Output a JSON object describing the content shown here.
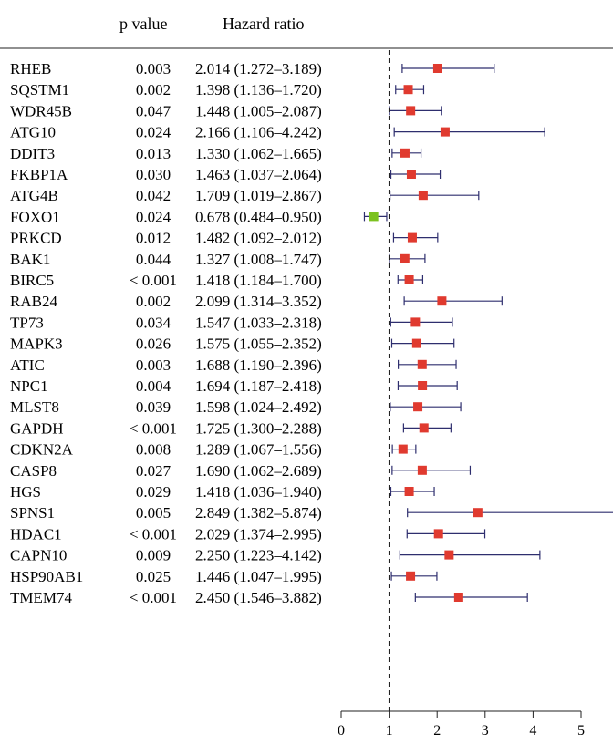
{
  "chart_data": {
    "type": "forest",
    "columns": {
      "gene": "",
      "p_value": "p value",
      "hazard_ratio": "Hazard ratio"
    },
    "reference_line": 1,
    "xlim": [
      0,
      5
    ],
    "xticks": [
      "0",
      "1",
      "2",
      "3",
      "4",
      "5"
    ],
    "colors": {
      "risk": "#e03a2f",
      "protective": "#7cc21f",
      "ci_line": "#2e2e6e"
    },
    "rows": [
      {
        "gene": "RHEB",
        "p": "0.003",
        "hr_text": "2.014 (1.272–3.189)",
        "hr": 2.014,
        "lo": 1.272,
        "hi": 3.189
      },
      {
        "gene": "SQSTM1",
        "p": "0.002",
        "hr_text": "1.398 (1.136–1.720)",
        "hr": 1.398,
        "lo": 1.136,
        "hi": 1.72
      },
      {
        "gene": "WDR45B",
        "p": "0.047",
        "hr_text": "1.448 (1.005–2.087)",
        "hr": 1.448,
        "lo": 1.005,
        "hi": 2.087
      },
      {
        "gene": "ATG10",
        "p": "0.024",
        "hr_text": "2.166 (1.106–4.242)",
        "hr": 2.166,
        "lo": 1.106,
        "hi": 4.242
      },
      {
        "gene": "DDIT3",
        "p": "0.013",
        "hr_text": "1.330 (1.062–1.665)",
        "hr": 1.33,
        "lo": 1.062,
        "hi": 1.665
      },
      {
        "gene": "FKBP1A",
        "p": "0.030",
        "hr_text": "1.463 (1.037–2.064)",
        "hr": 1.463,
        "lo": 1.037,
        "hi": 2.064
      },
      {
        "gene": "ATG4B",
        "p": "0.042",
        "hr_text": "1.709 (1.019–2.867)",
        "hr": 1.709,
        "lo": 1.019,
        "hi": 2.867
      },
      {
        "gene": "FOXO1",
        "p": "0.024",
        "hr_text": "0.678 (0.484–0.950)",
        "hr": 0.678,
        "lo": 0.484,
        "hi": 0.95
      },
      {
        "gene": "PRKCD",
        "p": "0.012",
        "hr_text": "1.482 (1.092–2.012)",
        "hr": 1.482,
        "lo": 1.092,
        "hi": 2.012
      },
      {
        "gene": "BAK1",
        "p": "0.044",
        "hr_text": "1.327 (1.008–1.747)",
        "hr": 1.327,
        "lo": 1.008,
        "hi": 1.747
      },
      {
        "gene": "BIRC5",
        "p": "< 0.001",
        "hr_text": "1.418 (1.184–1.700)",
        "hr": 1.418,
        "lo": 1.184,
        "hi": 1.7
      },
      {
        "gene": "RAB24",
        "p": "0.002",
        "hr_text": "2.099 (1.314–3.352)",
        "hr": 2.099,
        "lo": 1.314,
        "hi": 3.352
      },
      {
        "gene": "TP73",
        "p": "0.034",
        "hr_text": "1.547 (1.033–2.318)",
        "hr": 1.547,
        "lo": 1.033,
        "hi": 2.318
      },
      {
        "gene": "MAPK3",
        "p": "0.026",
        "hr_text": "1.575 (1.055–2.352)",
        "hr": 1.575,
        "lo": 1.055,
        "hi": 2.352
      },
      {
        "gene": "ATIC",
        "p": "0.003",
        "hr_text": "1.688 (1.190–2.396)",
        "hr": 1.688,
        "lo": 1.19,
        "hi": 2.396
      },
      {
        "gene": "NPC1",
        "p": "0.004",
        "hr_text": "1.694 (1.187–2.418)",
        "hr": 1.694,
        "lo": 1.187,
        "hi": 2.418
      },
      {
        "gene": "MLST8",
        "p": "0.039",
        "hr_text": "1.598 (1.024–2.492)",
        "hr": 1.598,
        "lo": 1.024,
        "hi": 2.492
      },
      {
        "gene": "GAPDH",
        "p": "< 0.001",
        "hr_text": "1.725 (1.300–2.288)",
        "hr": 1.725,
        "lo": 1.3,
        "hi": 2.288
      },
      {
        "gene": "CDKN2A",
        "p": "0.008",
        "hr_text": "1.289 (1.067–1.556)",
        "hr": 1.289,
        "lo": 1.067,
        "hi": 1.556
      },
      {
        "gene": "CASP8",
        "p": "0.027",
        "hr_text": "1.690 (1.062–2.689)",
        "hr": 1.69,
        "lo": 1.062,
        "hi": 2.689
      },
      {
        "gene": "HGS",
        "p": "0.029",
        "hr_text": "1.418 (1.036–1.940)",
        "hr": 1.418,
        "lo": 1.036,
        "hi": 1.94
      },
      {
        "gene": "SPNS1",
        "p": "0.005",
        "hr_text": "2.849 (1.382–5.874)",
        "hr": 2.849,
        "lo": 1.382,
        "hi": 5.874
      },
      {
        "gene": "HDAC1",
        "p": "< 0.001",
        "hr_text": "2.029 (1.374–2.995)",
        "hr": 2.029,
        "lo": 1.374,
        "hi": 2.995
      },
      {
        "gene": "CAPN10",
        "p": "0.009",
        "hr_text": "2.250 (1.223–4.142)",
        "hr": 2.25,
        "lo": 1.223,
        "hi": 4.142
      },
      {
        "gene": "HSP90AB1",
        "p": "0.025",
        "hr_text": "1.446 (1.047–1.995)",
        "hr": 1.446,
        "lo": 1.047,
        "hi": 1.995
      },
      {
        "gene": "TMEM74",
        "p": "< 0.001",
        "hr_text": "2.450 (1.546–3.882)",
        "hr": 2.45,
        "lo": 1.546,
        "hi": 3.882
      }
    ]
  }
}
